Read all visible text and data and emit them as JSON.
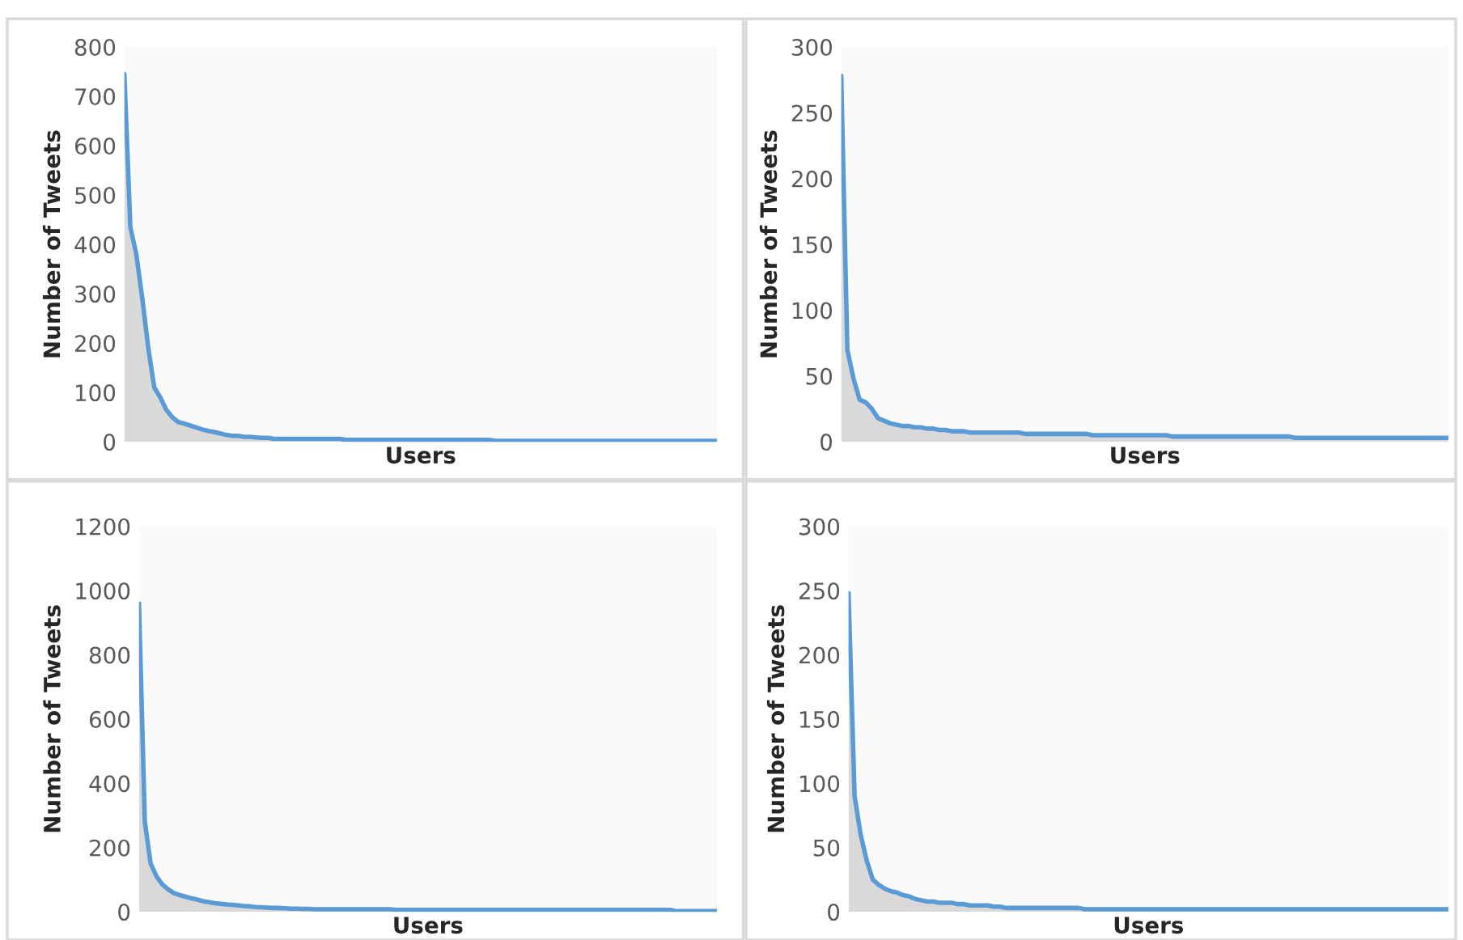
{
  "chart_data": [
    {
      "type": "area",
      "xlabel": "Users",
      "ylabel": "Number of Tweets",
      "ylim": [
        0,
        800
      ],
      "yticks": [
        0,
        100,
        200,
        300,
        400,
        500,
        600,
        700,
        800
      ],
      "grid": false,
      "legend": false,
      "categories": [
        null,
        null,
        null,
        null,
        null,
        null,
        null,
        null,
        null,
        null,
        null,
        null,
        null,
        null,
        null,
        null,
        null,
        null,
        null,
        null,
        null,
        null,
        null,
        null,
        null,
        null,
        null,
        null,
        null,
        null,
        null,
        null,
        null,
        null,
        null,
        null,
        null,
        null,
        null,
        null,
        null,
        null,
        null,
        null,
        null,
        null,
        null,
        null,
        null,
        null,
        null,
        null,
        null,
        null,
        null,
        null,
        null,
        null,
        null,
        null,
        null,
        null,
        null,
        null,
        null,
        null,
        null,
        null,
        null,
        null,
        null,
        null,
        null,
        null,
        null,
        null,
        null,
        null,
        null,
        null,
        null,
        null,
        null,
        null,
        null,
        null,
        null,
        null,
        null,
        null,
        null,
        null,
        null,
        null,
        null,
        null,
        null,
        null,
        null,
        null
      ],
      "series": [
        {
          "color": "#5b9bd5",
          "values": [
            745,
            435,
            380,
            290,
            190,
            110,
            90,
            65,
            50,
            40,
            37,
            33,
            29,
            25,
            22,
            20,
            17,
            14,
            12,
            12,
            10,
            10,
            9,
            8,
            8,
            6,
            6,
            6,
            6,
            6,
            6,
            6,
            6,
            6,
            6,
            6,
            6,
            4,
            4,
            4,
            4,
            4,
            4,
            4,
            4,
            4,
            4,
            4,
            4,
            4,
            4,
            4,
            4,
            4,
            4,
            4,
            4,
            4,
            4,
            4,
            4,
            4,
            2,
            2,
            2,
            2,
            2,
            2,
            2,
            2,
            2,
            2,
            2,
            2,
            2,
            2,
            2,
            2,
            2,
            2,
            2,
            2,
            2,
            2,
            2,
            2,
            2,
            2,
            2,
            2,
            2,
            2,
            2,
            2,
            2,
            2,
            2,
            2,
            2,
            2
          ]
        }
      ]
    },
    {
      "type": "area",
      "xlabel": "Users",
      "ylabel": "Number of Tweets",
      "ylim": [
        0,
        300
      ],
      "yticks": [
        0,
        50,
        100,
        150,
        200,
        250,
        300
      ],
      "grid": false,
      "legend": false,
      "categories": [
        null,
        null,
        null,
        null,
        null,
        null,
        null,
        null,
        null,
        null,
        null,
        null,
        null,
        null,
        null,
        null,
        null,
        null,
        null,
        null,
        null,
        null,
        null,
        null,
        null,
        null,
        null,
        null,
        null,
        null,
        null,
        null,
        null,
        null,
        null,
        null,
        null,
        null,
        null,
        null,
        null,
        null,
        null,
        null,
        null,
        null,
        null,
        null,
        null,
        null,
        null,
        null,
        null,
        null,
        null,
        null,
        null,
        null,
        null,
        null,
        null,
        null,
        null,
        null,
        null,
        null,
        null,
        null,
        null,
        null,
        null,
        null,
        null,
        null,
        null,
        null,
        null,
        null,
        null,
        null,
        null,
        null,
        null,
        null,
        null,
        null,
        null,
        null,
        null,
        null,
        null,
        null,
        null,
        null,
        null,
        null,
        null,
        null,
        null,
        null
      ],
      "series": [
        {
          "color": "#5b9bd5",
          "values": [
            278,
            70,
            48,
            32,
            30,
            25,
            18,
            16,
            14,
            13,
            12,
            12,
            11,
            11,
            10,
            10,
            9,
            9,
            8,
            8,
            8,
            7,
            7,
            7,
            7,
            7,
            7,
            7,
            7,
            7,
            6,
            6,
            6,
            6,
            6,
            6,
            6,
            6,
            6,
            6,
            6,
            5,
            5,
            5,
            5,
            5,
            5,
            5,
            5,
            5,
            5,
            5,
            5,
            5,
            4,
            4,
            4,
            4,
            4,
            4,
            4,
            4,
            4,
            4,
            4,
            4,
            4,
            4,
            4,
            4,
            4,
            4,
            4,
            4,
            3,
            3,
            3,
            3,
            3,
            3,
            3,
            3,
            3,
            3,
            3,
            3,
            3,
            3,
            3,
            3,
            3,
            3,
            3,
            3,
            3,
            3,
            3,
            3,
            3,
            3
          ]
        }
      ]
    },
    {
      "type": "area",
      "xlabel": "Users",
      "ylabel": "Number of Tweets",
      "ylim": [
        0,
        1200
      ],
      "yticks": [
        0,
        200,
        400,
        600,
        800,
        1000,
        1200
      ],
      "grid": false,
      "legend": false,
      "categories": [
        null,
        null,
        null,
        null,
        null,
        null,
        null,
        null,
        null,
        null,
        null,
        null,
        null,
        null,
        null,
        null,
        null,
        null,
        null,
        null,
        null,
        null,
        null,
        null,
        null,
        null,
        null,
        null,
        null,
        null,
        null,
        null,
        null,
        null,
        null,
        null,
        null,
        null,
        null,
        null,
        null,
        null,
        null,
        null,
        null,
        null,
        null,
        null,
        null,
        null,
        null,
        null,
        null,
        null,
        null,
        null,
        null,
        null,
        null,
        null,
        null,
        null,
        null,
        null,
        null,
        null,
        null,
        null,
        null,
        null,
        null,
        null,
        null,
        null,
        null,
        null,
        null,
        null,
        null,
        null,
        null,
        null,
        null,
        null,
        null,
        null,
        null,
        null,
        null,
        null,
        null,
        null,
        null,
        null,
        null,
        null,
        null,
        null,
        null,
        null
      ],
      "series": [
        {
          "color": "#5b9bd5",
          "values": [
            960,
            280,
            150,
            110,
            85,
            70,
            58,
            52,
            47,
            42,
            38,
            33,
            30,
            27,
            25,
            23,
            22,
            20,
            18,
            17,
            15,
            14,
            13,
            12,
            12,
            11,
            10,
            10,
            9,
            9,
            8,
            8,
            8,
            8,
            8,
            8,
            8,
            8,
            8,
            8,
            8,
            8,
            8,
            8,
            6,
            6,
            6,
            6,
            6,
            6,
            6,
            6,
            6,
            6,
            6,
            6,
            6,
            6,
            6,
            6,
            6,
            6,
            6,
            6,
            6,
            6,
            6,
            6,
            6,
            6,
            6,
            6,
            6,
            6,
            6,
            6,
            6,
            6,
            6,
            6,
            6,
            6,
            6,
            6,
            6,
            6,
            6,
            6,
            6,
            6,
            6,
            6,
            2,
            2,
            2,
            2,
            2,
            2,
            2,
            2
          ]
        }
      ]
    },
    {
      "type": "area",
      "xlabel": "Users",
      "ylabel": "Number of Tweets",
      "ylim": [
        0,
        300
      ],
      "yticks": [
        0,
        50,
        100,
        150,
        200,
        250,
        300
      ],
      "grid": false,
      "legend": false,
      "categories": [
        null,
        null,
        null,
        null,
        null,
        null,
        null,
        null,
        null,
        null,
        null,
        null,
        null,
        null,
        null,
        null,
        null,
        null,
        null,
        null,
        null,
        null,
        null,
        null,
        null,
        null,
        null,
        null,
        null,
        null,
        null,
        null,
        null,
        null,
        null,
        null,
        null,
        null,
        null,
        null,
        null,
        null,
        null,
        null,
        null,
        null,
        null,
        null,
        null,
        null,
        null,
        null,
        null,
        null,
        null,
        null,
        null,
        null,
        null,
        null,
        null,
        null,
        null,
        null,
        null,
        null,
        null,
        null,
        null,
        null,
        null,
        null,
        null,
        null,
        null,
        null,
        null,
        null,
        null,
        null,
        null,
        null,
        null,
        null,
        null,
        null,
        null,
        null,
        null,
        null,
        null,
        null,
        null,
        null,
        null,
        null,
        null,
        null,
        null,
        null
      ],
      "series": [
        {
          "color": "#5b9bd5",
          "values": [
            248,
            90,
            60,
            40,
            25,
            21,
            18,
            16,
            15,
            13,
            12,
            10,
            9,
            8,
            8,
            7,
            7,
            7,
            6,
            6,
            5,
            5,
            5,
            5,
            4,
            4,
            3,
            3,
            3,
            3,
            3,
            3,
            3,
            3,
            3,
            3,
            3,
            3,
            3,
            2,
            2,
            2,
            2,
            2,
            2,
            2,
            2,
            2,
            2,
            2,
            2,
            2,
            2,
            2,
            2,
            2,
            2,
            2,
            2,
            2,
            2,
            2,
            2,
            2,
            2,
            2,
            2,
            2,
            2,
            2,
            2,
            2,
            2,
            2,
            2,
            2,
            2,
            2,
            2,
            2,
            2,
            2,
            2,
            2,
            2,
            2,
            2,
            2,
            2,
            2,
            2,
            2,
            2,
            2,
            2,
            2,
            2,
            2,
            2,
            2
          ]
        }
      ]
    }
  ]
}
